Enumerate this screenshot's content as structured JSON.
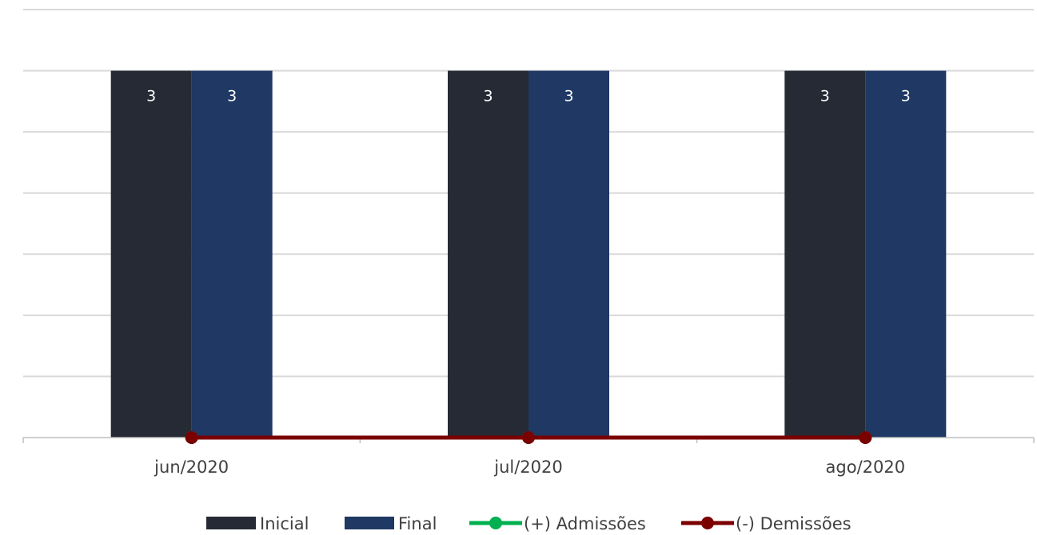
{
  "chart_data": {
    "type": "bar",
    "categories": [
      "jun/2020",
      "jul/2020",
      "ago/2020"
    ],
    "series": [
      {
        "name": "Inicial",
        "kind": "bar",
        "color": "#252a34",
        "values": [
          3,
          3,
          3
        ],
        "labels": [
          "3",
          "3",
          "3"
        ]
      },
      {
        "name": "Final",
        "kind": "bar",
        "color": "#1f3864",
        "values": [
          3,
          3,
          3
        ],
        "labels": [
          "3",
          "3",
          "3"
        ]
      },
      {
        "name": "(+) Admissões",
        "kind": "line",
        "color": "#00b050",
        "values": [
          0,
          0,
          0
        ]
      },
      {
        "name": "(-) Demissões",
        "kind": "line",
        "color": "#7b0000",
        "values": [
          0,
          0,
          0
        ]
      }
    ],
    "ylim": [
      0,
      3.5
    ],
    "y_gridline_step": 0.5,
    "grid": true,
    "legend_position": "bottom",
    "gridline_color": "#d9d9d9",
    "axis_color": "#bfbfbf"
  }
}
